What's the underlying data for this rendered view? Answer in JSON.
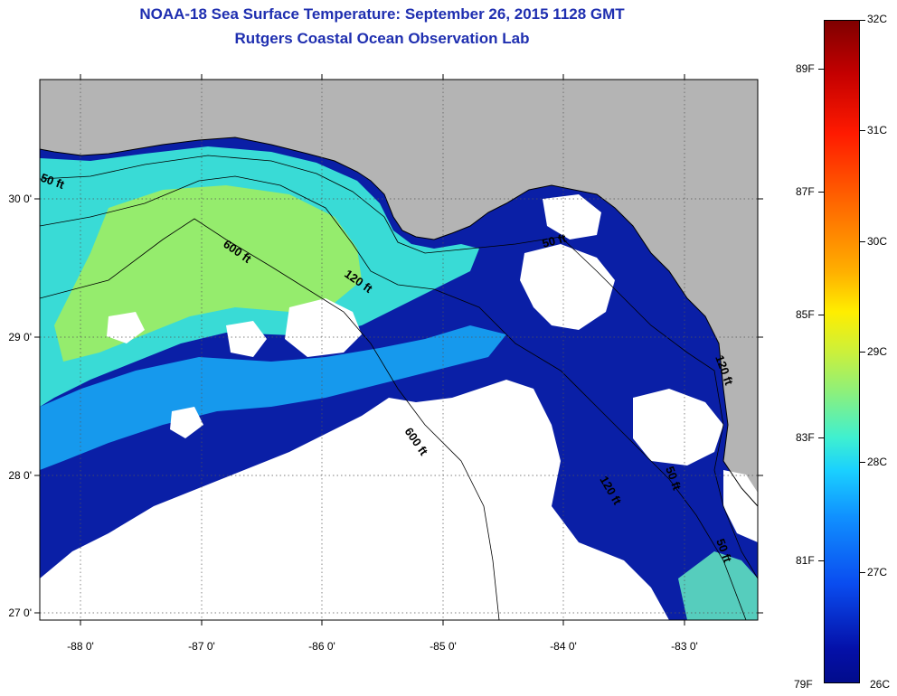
{
  "title": {
    "line1": "NOAA-18 Sea Surface Temperature:  September 26, 2015 1128 GMT",
    "line2": "Rutgers Coastal Ocean Observation Lab"
  },
  "map": {
    "lon_ticks": [
      {
        "value": -88,
        "label": "-88 0'"
      },
      {
        "value": -87,
        "label": "-87 0'"
      },
      {
        "value": -86,
        "label": "-86 0'"
      },
      {
        "value": -85,
        "label": "-85 0'"
      },
      {
        "value": -84,
        "label": "-84 0'"
      },
      {
        "value": -83,
        "label": "-83 0'"
      }
    ],
    "lat_ticks": [
      {
        "value": 30,
        "label": "30 0'"
      },
      {
        "value": 29,
        "label": "29 0'"
      },
      {
        "value": 28,
        "label": "28 0'"
      },
      {
        "value": 27,
        "label": "27 0'"
      }
    ],
    "contour_labels": [
      {
        "text": "50 ft"
      },
      {
        "text": "600 ft"
      },
      {
        "text": "120 ft"
      },
      {
        "text": "600 ft"
      },
      {
        "text": "50 ft"
      },
      {
        "text": "120 ft"
      },
      {
        "text": "50 ft"
      },
      {
        "text": "120 ft"
      },
      {
        "text": "50 ft"
      }
    ],
    "colors": {
      "land": "#b4b4b4",
      "cloud": "#ffffff",
      "coast": "#000000"
    }
  },
  "colorbar": {
    "celsius": [
      "32C",
      "31C",
      "30C",
      "29C",
      "28C",
      "27C",
      "26C"
    ],
    "fahrenheit": [
      "89F",
      "87F",
      "85F",
      "83F",
      "81F",
      "79F"
    ]
  }
}
